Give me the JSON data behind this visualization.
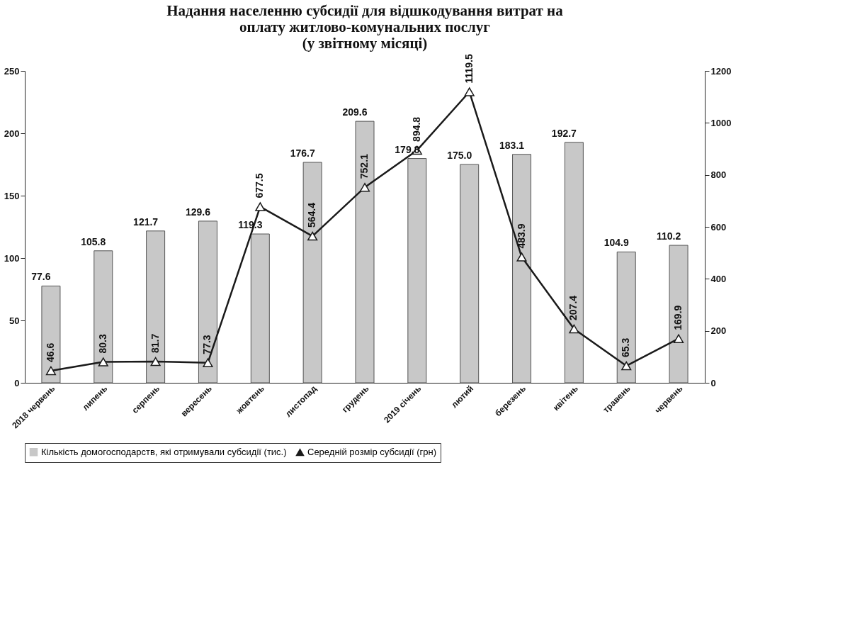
{
  "chart_data": {
    "type": "bar",
    "title": "Надання населенню субсидії для відшкодування витрат на\nоплату житлово-комунальних послуг\n(у звітному місяці)",
    "categories": [
      "2018 червень",
      "липень",
      "серпень",
      "вересень",
      "жовтень",
      "листопад",
      "грудень",
      "2019 січень",
      "лютий",
      "березень",
      "квітень",
      "травень",
      "червень"
    ],
    "series": [
      {
        "name": "Кількість домогосподарств, які отримували субсидії (тис.)",
        "color": "#c8c8c8",
        "values": [
          77.6,
          105.8,
          121.7,
          129.6,
          119.3,
          176.7,
          209.6,
          179.8,
          175.0,
          183.1,
          192.7,
          104.9,
          110.2
        ],
        "value_labels": [
          "77.6",
          "105.8",
          "121.7",
          "129.6",
          "119.3",
          "176.7",
          "209.6",
          "179.8",
          "175.0",
          "183.1",
          "192.7",
          "104.9",
          "110.2"
        ]
      },
      {
        "name": "Середній розмір субсидії (грн)",
        "type": "line",
        "axis": "y2",
        "color": "#1a1a1a",
        "marker": "triangle",
        "values": [
          46.6,
          80.3,
          81.7,
          77.3,
          677.5,
          564.4,
          752.1,
          894.8,
          1119.5,
          483.9,
          207.4,
          65.3,
          169.9
        ],
        "value_labels": [
          "46.6",
          "80.3",
          "81.7",
          "77.3",
          "677.5",
          "564.4",
          "752.1",
          "894.8",
          "1119.5",
          "483.9",
          "207.4",
          "65.3",
          "169.9"
        ]
      }
    ],
    "ylim": [
      0,
      250
    ],
    "yticks": [
      0,
      50,
      100,
      150,
      200,
      250
    ],
    "y2lim": [
      0,
      1200
    ],
    "y2ticks": [
      0,
      200,
      400,
      600,
      800,
      1000,
      1200
    ],
    "grid": false,
    "legend": "bottom"
  }
}
